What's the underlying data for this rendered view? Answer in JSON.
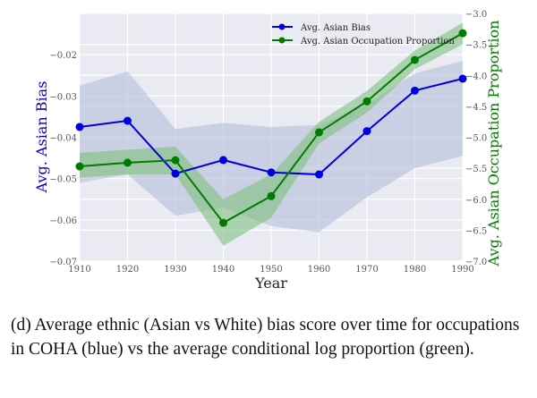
{
  "chart_data": {
    "type": "line",
    "xlabel": "Year",
    "ylabel_left": "Avg. Asian Bias",
    "ylabel_right": "Avg. Asian Occupation Proportion",
    "x": [
      1910,
      1920,
      1930,
      1940,
      1950,
      1960,
      1970,
      1980,
      1990
    ],
    "xlim": [
      1910,
      1990
    ],
    "ylim_left": [
      -0.07,
      -0.01
    ],
    "ylim_right": [
      -7.0,
      -3.0
    ],
    "xticks": [
      "1910",
      "1920",
      "1930",
      "1940",
      "1950",
      "1960",
      "1970",
      "1980",
      "1990"
    ],
    "yticks_left": [
      "−0.07",
      "−0.06",
      "−0.05",
      "−0.04",
      "−0.03",
      "−0.02"
    ],
    "yticks_left_values": [
      -0.07,
      -0.06,
      -0.05,
      -0.04,
      -0.03,
      -0.02
    ],
    "yticks_right": [
      "−7.0",
      "−6.5",
      "−6.0",
      "−5.5",
      "−5.0",
      "−4.5",
      "−4.0",
      "−3.5",
      "−3.0"
    ],
    "yticks_right_values": [
      -7.0,
      -6.5,
      -6.0,
      -5.5,
      -5.0,
      -4.5,
      -4.0,
      -3.5,
      -3.0
    ],
    "grid": true,
    "legend_position": "top-right",
    "series": [
      {
        "name": "Avg. Asian Bias",
        "axis": "left",
        "color": "#0000dd",
        "band_color": "#b4bedb",
        "values": [
          -0.0375,
          -0.036,
          -0.0488,
          -0.0455,
          -0.0485,
          -0.049,
          -0.0385,
          -0.0287,
          -0.0258
        ],
        "upper": [
          -0.0275,
          -0.024,
          -0.038,
          -0.0365,
          -0.0375,
          -0.037,
          -0.032,
          -0.0245,
          -0.0215
        ],
        "lower": [
          -0.051,
          -0.049,
          -0.059,
          -0.057,
          -0.0615,
          -0.063,
          -0.0545,
          -0.0475,
          -0.0445
        ]
      },
      {
        "name": "Avg. Asian Occupation Proportion",
        "axis": "right",
        "color": "#007a00",
        "band_color": "#7fc07f",
        "values": [
          -5.47,
          -5.41,
          -5.37,
          -6.38,
          -5.95,
          -4.92,
          -4.42,
          -3.75,
          -3.32
        ],
        "upper": [
          -5.25,
          -5.2,
          -5.15,
          -6.0,
          -5.6,
          -4.75,
          -4.25,
          -3.6,
          -3.15
        ],
        "lower": [
          -5.65,
          -5.6,
          -5.6,
          -6.75,
          -6.3,
          -5.1,
          -4.6,
          -3.9,
          -3.5
        ]
      }
    ]
  },
  "caption": "(d) Average ethnic (Asian vs White) bias score over time for occupations in COHA (blue) vs the average conditional log proportion (green)."
}
